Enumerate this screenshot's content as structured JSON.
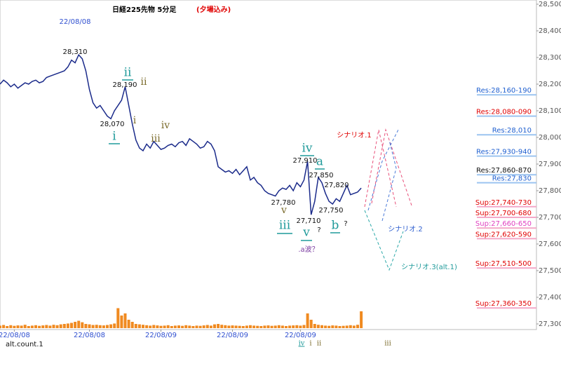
{
  "chart_data": {
    "type": "line",
    "title": "日経225先物 5分足",
    "subtitle": "(夕場込み)",
    "xlim": [
      0,
      150
    ],
    "xticks": [
      {
        "value": 4,
        "label": "22/08/08"
      },
      {
        "value": 25,
        "label": "22/08/08"
      },
      {
        "value": 45,
        "label": "22/08/09"
      },
      {
        "value": 65,
        "label": "22/08/09"
      },
      {
        "value": 84,
        "label": "22/08/09"
      }
    ],
    "ylim": [
      27300,
      28500
    ],
    "yticks": [
      {
        "value": 28500,
        "label": "28,500"
      },
      {
        "value": 28400,
        "label": "28,400"
      },
      {
        "value": 28300,
        "label": "28,300"
      },
      {
        "value": 28200,
        "label": "28,200"
      },
      {
        "value": 28100,
        "label": "28,100"
      },
      {
        "value": 28000,
        "label": "28,000"
      },
      {
        "value": 27900,
        "label": "27,900"
      },
      {
        "value": 27800,
        "label": "27,800"
      },
      {
        "value": 27700,
        "label": "27,700"
      },
      {
        "value": 27600,
        "label": "27,600"
      },
      {
        "value": 27500,
        "label": "27,500"
      },
      {
        "value": 27400,
        "label": "27,400"
      },
      {
        "value": 27300,
        "label": "27,300"
      }
    ],
    "series": [
      {
        "name": "price",
        "color": "#1a2a8a",
        "values": [
          28200,
          28215,
          28205,
          28190,
          28200,
          28185,
          28195,
          28205,
          28200,
          28210,
          28215,
          28205,
          28210,
          28225,
          28230,
          28235,
          28240,
          28245,
          28250,
          28265,
          28290,
          28280,
          28310,
          28295,
          28250,
          28180,
          28130,
          28110,
          28120,
          28100,
          28080,
          28070,
          28100,
          28120,
          28140,
          28190,
          28120,
          28050,
          27990,
          27960,
          27950,
          27975,
          27960,
          27985,
          27970,
          27955,
          27960,
          27970,
          27975,
          27965,
          27980,
          27985,
          27970,
          27995,
          27985,
          27975,
          27960,
          27965,
          27985,
          27975,
          27950,
          27890,
          27880,
          27870,
          27875,
          27865,
          27880,
          27860,
          27875,
          27890,
          27840,
          27850,
          27830,
          27820,
          27800,
          27790,
          27785,
          27780,
          27800,
          27810,
          27805,
          27820,
          27800,
          27830,
          27815,
          27840,
          27910,
          27710,
          27760,
          27850,
          27830,
          27790,
          27760,
          27750,
          27770,
          27760,
          27790,
          27820,
          27785,
          27790,
          27795,
          27810
        ]
      }
    ],
    "volume": {
      "color": "#f08a20",
      "values": [
        12,
        15,
        10,
        14,
        11,
        13,
        12,
        16,
        10,
        12,
        14,
        11,
        13,
        15,
        12,
        16,
        14,
        18,
        20,
        22,
        25,
        30,
        35,
        28,
        20,
        18,
        15,
        16,
        14,
        13,
        15,
        18,
        22,
        95,
        60,
        70,
        40,
        30,
        20,
        18,
        16,
        14,
        12,
        15,
        13,
        11,
        12,
        14,
        10,
        12,
        13,
        11,
        14,
        12,
        10,
        12,
        11,
        13,
        15,
        12,
        18,
        20,
        16,
        14,
        12,
        13,
        12,
        11,
        10,
        12,
        14,
        12,
        11,
        10,
        12,
        13,
        11,
        12,
        14,
        12,
        10,
        12,
        13,
        14,
        12,
        15,
        70,
        40,
        20,
        16,
        14,
        12,
        11,
        13,
        12,
        10,
        11,
        12,
        14,
        12,
        16,
        80
      ]
    },
    "levels": [
      {
        "label": "Res:28,160-190",
        "value": 28160,
        "color": "#2060d0",
        "line": "#9cc4f0"
      },
      {
        "label": "Res:28,080-090",
        "value": 28080,
        "color": "#e00000",
        "line": "#9cc4f0"
      },
      {
        "label": "Res:28,010",
        "value": 28010,
        "color": "#2060d0",
        "line": "#9cc4f0"
      },
      {
        "label": "Res:27,930-940",
        "value": 27930,
        "color": "#2060d0",
        "line": "#9cc4f0"
      },
      {
        "label": "Res:27,860-870",
        "value": 27860,
        "color": "#111111",
        "line": "#9cc4f0"
      },
      {
        "label": "Res:27,830",
        "value": 27830,
        "color": "#2060d0",
        "line": "#9cc4f0"
      },
      {
        "label": "Sup:27,740-730",
        "value": 27740,
        "color": "#e00000",
        "line": "#f4a8c8"
      },
      {
        "label": "Sup:27,700-680",
        "value": 27700,
        "color": "#e00000",
        "line": "#f4a8c8"
      },
      {
        "label": "Sup:27,660-650",
        "value": 27660,
        "color": "#e040c0",
        "line": "#f4a8c8"
      },
      {
        "label": "Sup:27,620-590",
        "value": 27620,
        "color": "#e00000",
        "line": "#f4a8c8"
      },
      {
        "label": "Sup:27,510-500",
        "value": 27510,
        "color": "#e00000",
        "line": "#f4a8c8"
      },
      {
        "label": "Sup:27,360-350",
        "value": 27360,
        "color": "#e00000",
        "line": "#f4a8c8"
      }
    ],
    "annotations": [
      "22/08/08",
      "28,310",
      "ii",
      "ii",
      "28,190",
      "28,070",
      "i",
      "i",
      "iv",
      "iii",
      "iv",
      "27,910",
      "a",
      "27,850",
      "27,820",
      "27,780",
      "v",
      "27,750",
      "27,710",
      "iii",
      "v",
      "?",
      "b",
      "?",
      ".a波？",
      "シナリオ.1",
      "シナリオ.2",
      "シナリオ.3(alt.1)",
      "alt.count.1",
      "iv",
      "i",
      "ii",
      "iii"
    ]
  }
}
